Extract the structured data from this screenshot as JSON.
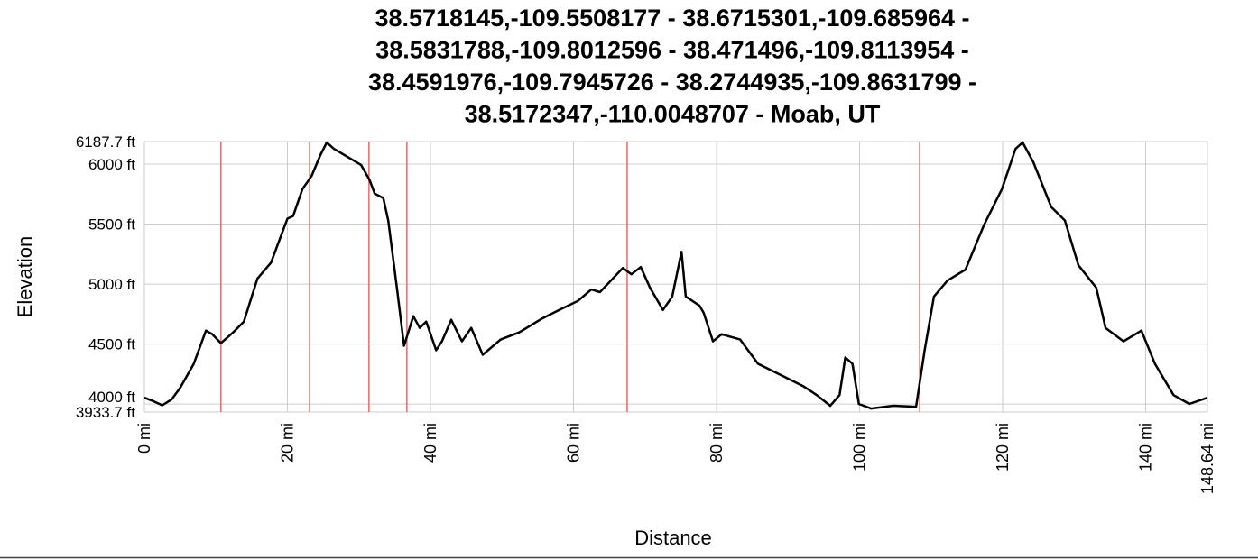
{
  "chart_data": {
    "type": "line",
    "title": [
      "38.5718145,-109.5508177 - 38.6715301,-109.685964 -",
      "38.5831788,-109.8012596 - 38.471496,-109.8113954 -",
      "38.4591976,-109.7945726 - 38.2744935,-109.8631799 -",
      "38.5172347,-110.0048707 - Moab, UT"
    ],
    "x_label": "Distance",
    "y_label": "Elevation",
    "x": [
      0,
      1.3,
      2.5,
      3.8,
      5.0,
      6.9,
      8.6,
      9.5,
      10.7,
      12.4,
      13.9,
      15.8,
      17.7,
      20.0,
      20.8,
      22.1,
      23.4,
      24.6,
      25.5,
      26.5,
      30.3,
      31.5,
      32.2,
      33.4,
      34.1,
      35.3,
      36.3,
      37.6,
      38.5,
      39.4,
      40.8,
      41.6,
      42.9,
      44.4,
      45.7,
      47.3,
      49.8,
      52.4,
      55.5,
      58.0,
      60.6,
      62.5,
      63.7,
      66.9,
      68.1,
      69.4,
      70.7,
      72.5,
      73.8,
      75.1,
      75.7,
      77.6,
      78.2,
      79.5,
      80.7,
      83.3,
      85.8,
      89.6,
      92.1,
      94.0,
      95.9,
      97.2,
      98.0,
      99.0,
      99.9,
      101.6,
      104.7,
      107.9,
      109.1,
      110.4,
      112.3,
      114.8,
      117.4,
      119.9,
      121.8,
      122.8,
      124.3,
      126.8,
      128.7,
      130.6,
      133.1,
      134.4,
      136.9,
      139.4,
      141.3,
      143.9,
      146.1,
      148.64
    ],
    "values": [
      4053,
      4023,
      3990,
      4038,
      4135,
      4336,
      4612,
      4582,
      4508,
      4597,
      4687,
      5045,
      5179,
      5545,
      5567,
      5791,
      5903,
      6075,
      6180,
      6127,
      5993,
      5866,
      5754,
      5717,
      5530,
      4970,
      4486,
      4732,
      4635,
      4687,
      4448,
      4523,
      4702,
      4523,
      4635,
      4411,
      4538,
      4597,
      4709,
      4784,
      4859,
      4955,
      4933,
      5134,
      5082,
      5142,
      4970,
      4784,
      4896,
      5269,
      4896,
      4821,
      4761,
      4523,
      4582,
      4538,
      4336,
      4224,
      4150,
      4075,
      3986,
      4075,
      4389,
      4336,
      4001,
      3963,
      3986,
      3978,
      4448,
      4896,
      5030,
      5120,
      5493,
      5791,
      6127,
      6180,
      6015,
      5642,
      5530,
      5157,
      4970,
      4635,
      4523,
      4612,
      4336,
      4075,
      4001,
      4053
    ],
    "color": "#000000",
    "waypoints": [
      10.7,
      23.1,
      31.4,
      36.7,
      67.5,
      108.4
    ],
    "waypoint_color": "#ee6666",
    "xlim": [
      0,
      148.64
    ],
    "xticks": [
      {
        "value": 0,
        "label": "0 mi"
      },
      {
        "value": 20,
        "label": "20 mi"
      },
      {
        "value": 40,
        "label": "40 mi"
      },
      {
        "value": 60,
        "label": "60 mi"
      },
      {
        "value": 80,
        "label": "80 mi"
      },
      {
        "value": 100,
        "label": "100 mi"
      },
      {
        "value": 120,
        "label": "120 mi"
      },
      {
        "value": 140,
        "label": "140 mi"
      },
      {
        "value": 148.64,
        "label": "148.64 mi"
      }
    ],
    "ylim": [
      3933.7,
      6187.7
    ],
    "yticks": [
      {
        "value": 3933.7,
        "label": "3933.7 ft"
      },
      {
        "value": 4000,
        "label": "4000 ft"
      },
      {
        "value": 4500,
        "label": "4500 ft"
      },
      {
        "value": 5000,
        "label": "5000 ft"
      },
      {
        "value": 5500,
        "label": "5500 ft"
      },
      {
        "value": 6000,
        "label": "6000 ft"
      },
      {
        "value": 6187.7,
        "label": "6187.7 ft"
      }
    ],
    "grid": true
  }
}
